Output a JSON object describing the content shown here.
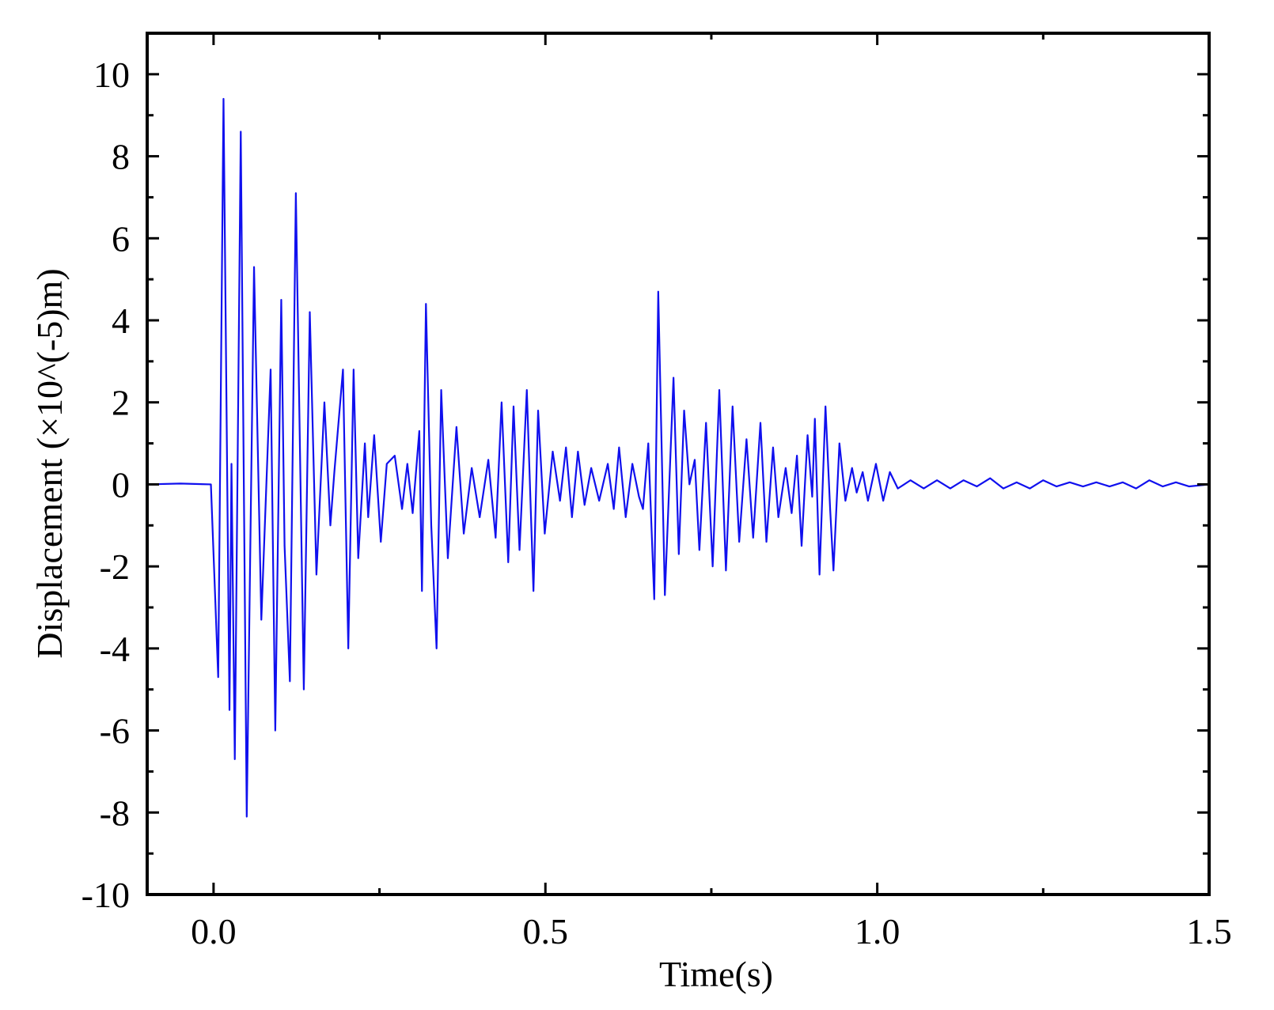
{
  "chart_data": {
    "type": "line",
    "xlabel": "Time(s)",
    "ylabel": "Displacement (×10^(-5)m)",
    "color": "#1010ee",
    "x": [
      -0.1,
      -0.05,
      -0.004,
      0.007,
      0.015,
      0.024,
      0.027,
      0.032,
      0.041,
      0.05,
      0.061,
      0.072,
      0.086,
      0.093,
      0.102,
      0.107,
      0.115,
      0.124,
      0.136,
      0.145,
      0.155,
      0.167,
      0.176,
      0.182,
      0.195,
      0.203,
      0.211,
      0.218,
      0.228,
      0.233,
      0.242,
      0.252,
      0.261,
      0.273,
      0.284,
      0.292,
      0.3,
      0.31,
      0.314,
      0.32,
      0.328,
      0.336,
      0.343,
      0.353,
      0.366,
      0.377,
      0.389,
      0.401,
      0.414,
      0.425,
      0.434,
      0.444,
      0.452,
      0.461,
      0.472,
      0.482,
      0.489,
      0.499,
      0.511,
      0.522,
      0.531,
      0.54,
      0.549,
      0.559,
      0.569,
      0.581,
      0.594,
      0.603,
      0.611,
      0.621,
      0.631,
      0.641,
      0.647,
      0.655,
      0.664,
      0.67,
      0.68,
      0.693,
      0.701,
      0.709,
      0.717,
      0.725,
      0.732,
      0.742,
      0.752,
      0.762,
      0.772,
      0.782,
      0.792,
      0.803,
      0.813,
      0.824,
      0.833,
      0.843,
      0.851,
      0.862,
      0.871,
      0.879,
      0.886,
      0.895,
      0.902,
      0.906,
      0.913,
      0.922,
      0.929,
      0.934,
      0.943,
      0.952,
      0.962,
      0.969,
      0.978,
      0.986,
      0.998,
      1.009,
      1.019,
      1.031,
      1.05,
      1.07,
      1.09,
      1.11,
      1.13,
      1.15,
      1.17,
      1.19,
      1.21,
      1.23,
      1.25,
      1.27,
      1.29,
      1.31,
      1.33,
      1.35,
      1.37,
      1.39,
      1.41,
      1.43,
      1.45,
      1.47,
      1.5
    ],
    "values": [
      0,
      0.02,
      0,
      -4.7,
      9.4,
      -5.5,
      0.5,
      -6.7,
      8.6,
      -8.1,
      5.3,
      -3.3,
      2.8,
      -6.0,
      4.5,
      -1.5,
      -4.8,
      7.1,
      -5.0,
      4.2,
      -2.2,
      2.0,
      -1.0,
      0.3,
      2.8,
      -4.0,
      2.8,
      -1.8,
      1.0,
      -0.8,
      1.2,
      -1.4,
      0.5,
      0.7,
      -0.6,
      0.5,
      -0.7,
      1.3,
      -2.6,
      4.4,
      -1.0,
      -4.0,
      2.3,
      -1.8,
      1.4,
      -1.2,
      0.4,
      -0.8,
      0.6,
      -1.3,
      2.0,
      -1.9,
      1.9,
      -1.6,
      2.3,
      -2.6,
      1.8,
      -1.2,
      0.8,
      -0.4,
      0.9,
      -0.8,
      0.8,
      -0.5,
      0.4,
      -0.4,
      0.5,
      -0.6,
      0.9,
      -0.8,
      0.5,
      -0.3,
      -0.6,
      1.0,
      -2.8,
      4.7,
      -2.7,
      2.6,
      -1.7,
      1.8,
      0.0,
      0.6,
      -1.6,
      1.5,
      -2.0,
      2.3,
      -2.1,
      1.9,
      -1.4,
      1.1,
      -1.3,
      1.5,
      -1.4,
      0.9,
      -0.8,
      0.4,
      -0.7,
      0.7,
      -1.5,
      1.2,
      -0.3,
      1.6,
      -2.2,
      1.9,
      -0.6,
      -2.1,
      1.0,
      -0.4,
      0.4,
      -0.2,
      0.3,
      -0.4,
      0.5,
      -0.4,
      0.3,
      -0.1,
      0.1,
      -0.1,
      0.1,
      -0.1,
      0.1,
      -0.05,
      0.15,
      -0.1,
      0.05,
      -0.1,
      0.1,
      -0.05,
      0.05,
      -0.05,
      0.05,
      -0.05,
      0.05,
      -0.1,
      0.1,
      -0.05,
      0.05,
      -0.05,
      0
    ],
    "xlim": [
      -0.1,
      1.5
    ],
    "xticks": [
      {
        "value": 0,
        "label": "0.0"
      },
      0.5,
      {
        "value": 1,
        "label": "1.0"
      },
      1.5
    ],
    "xminorticks": [
      0.25,
      0.75,
      1.25
    ],
    "ylim": [
      -10,
      11
    ],
    "yticks": [
      -10,
      -8,
      -6,
      -4,
      -2,
      0,
      2,
      4,
      6,
      8,
      10
    ],
    "yminorticks": [
      -9,
      -7,
      -5,
      -3,
      -1,
      1,
      3,
      5,
      7,
      9
    ]
  }
}
